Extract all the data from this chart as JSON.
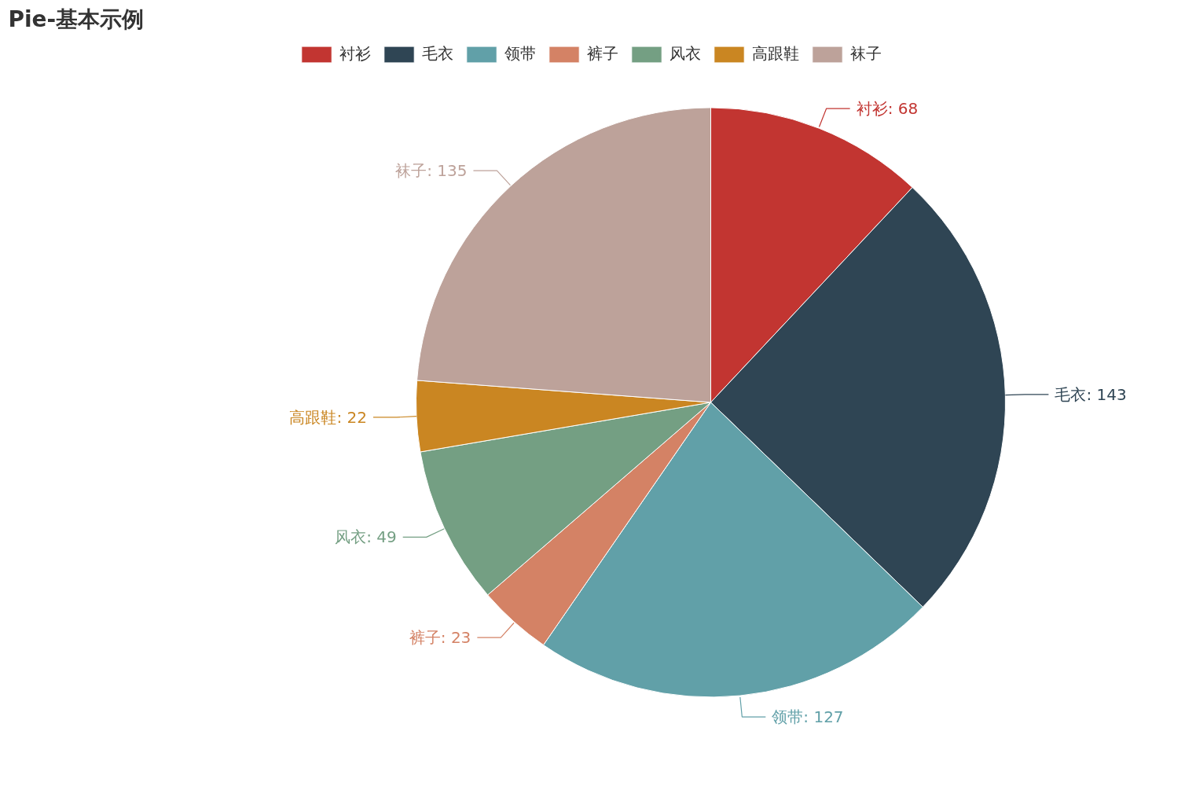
{
  "chart_data": {
    "type": "pie",
    "title": "Pie-基本示例",
    "categories": [
      "衬衫",
      "毛衣",
      "领带",
      "裤子",
      "风衣",
      "高跟鞋",
      "袜子"
    ],
    "values": [
      68,
      143,
      127,
      23,
      49,
      22,
      135
    ],
    "colors": [
      "#c23531",
      "#2f4554",
      "#61a0a8",
      "#d48265",
      "#749f83",
      "#ca8622",
      "#bda29a"
    ],
    "value_labels": [
      "衬衫: 68",
      "毛衣: 143",
      "领带: 127",
      "裤子: 23",
      "风衣: 49",
      "高跟鞋: 22",
      "袜子: 135"
    ],
    "legend": "top"
  }
}
